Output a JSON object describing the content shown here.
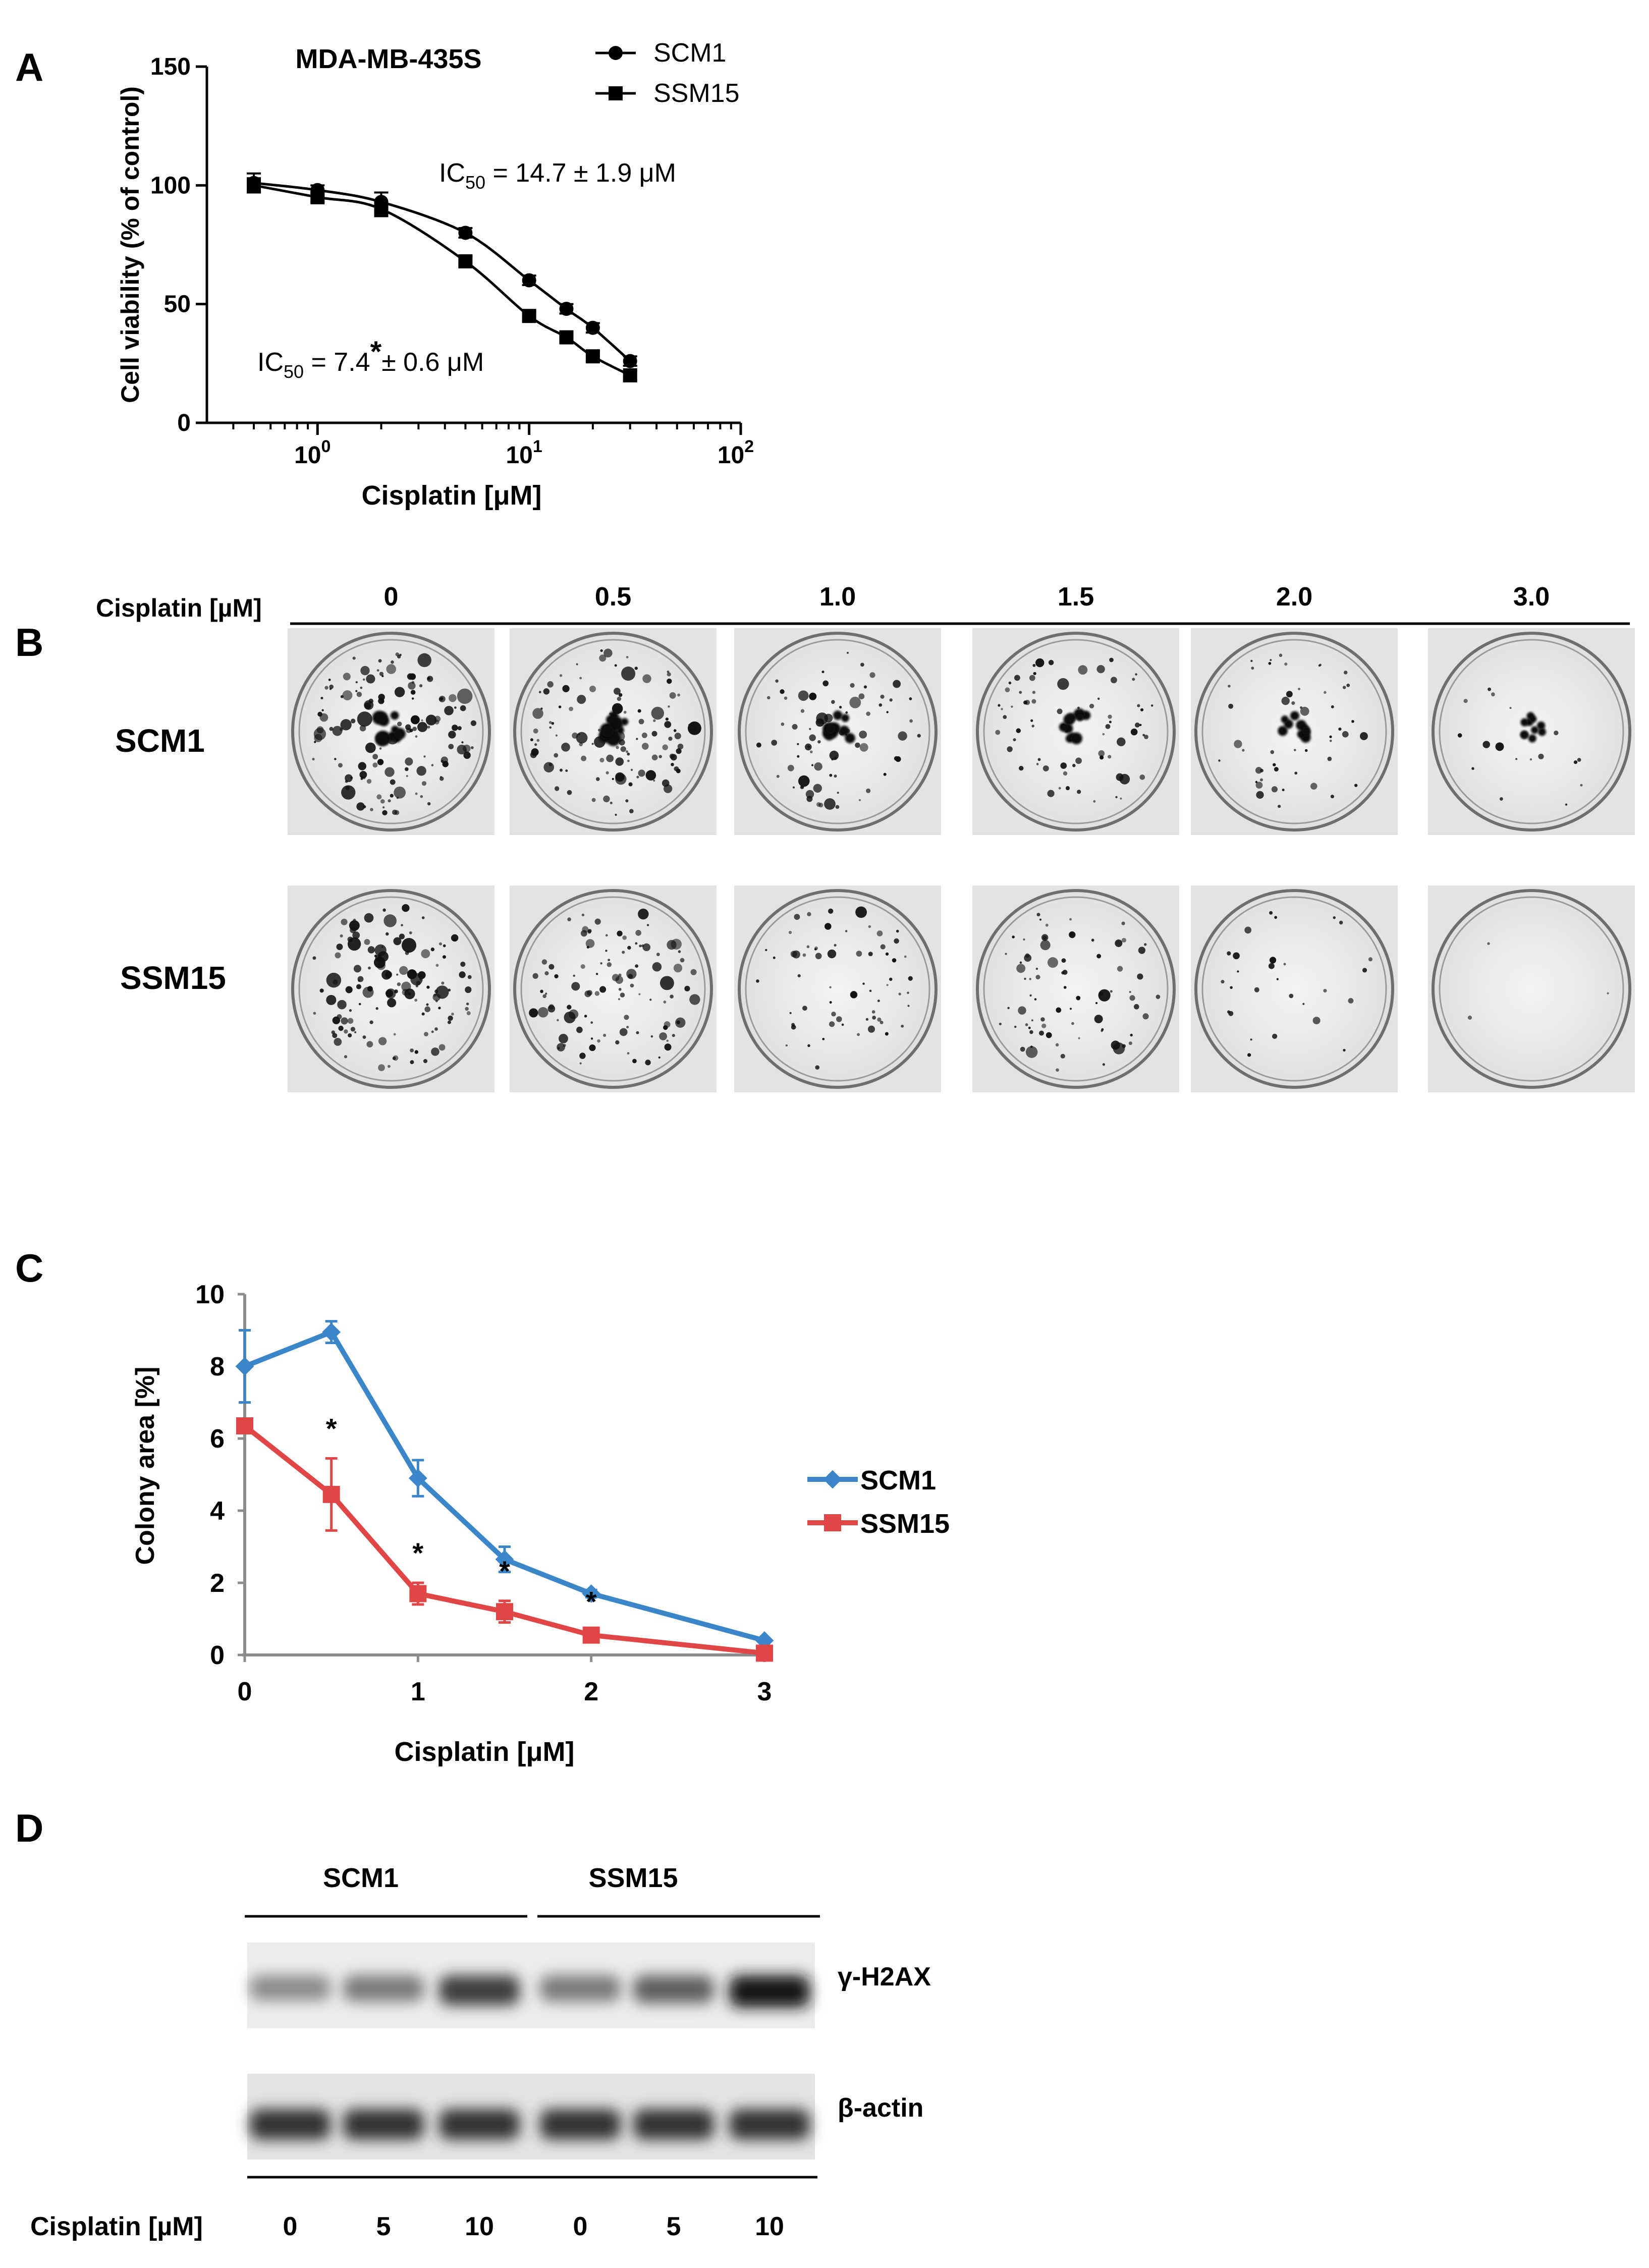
{
  "panels": {
    "a": "A",
    "b": "B",
    "c": "C",
    "d": "D"
  },
  "chart_data": [
    {
      "type": "line",
      "panel": "A",
      "title": "MDA-MB-435S",
      "xlabel": "Cisplatin [μM]",
      "ylabel": "Cell viability (% of control)",
      "xscale": "log",
      "xlim": [
        0.3,
        100
      ],
      "ylim": [
        0,
        150
      ],
      "yticks": [
        0,
        50,
        100,
        150
      ],
      "ytick_labels": [
        "0",
        "50",
        "100",
        "150"
      ],
      "xticks": [
        1,
        10,
        100
      ],
      "xtick_labels": [
        {
          "base": "10",
          "exp": "0"
        },
        {
          "base": "10",
          "exp": "1"
        },
        {
          "base": "10",
          "exp": "2"
        }
      ],
      "legend_position": "top-right",
      "series": [
        {
          "name": "SCM1",
          "marker": "circle",
          "x": [
            0.5,
            1,
            2,
            5,
            10,
            15,
            20,
            30
          ],
          "values": [
            101,
            98,
            93,
            80,
            60,
            48,
            40,
            26
          ],
          "errors": [
            4,
            2,
            4,
            2,
            2,
            2,
            2,
            2
          ]
        },
        {
          "name": "SSM15",
          "marker": "square",
          "x": [
            0.5,
            1,
            2,
            5,
            10,
            15,
            20,
            30
          ],
          "values": [
            100,
            95,
            90,
            68,
            45,
            36,
            28,
            20
          ],
          "errors": [
            3,
            2,
            3,
            2,
            2,
            2,
            2,
            2
          ]
        }
      ],
      "annotations": {
        "scm1": {
          "prefix": "IC",
          "sub": "50",
          "text": " = 14.7 ± 1.9 μM"
        },
        "ssm15": {
          "prefix": "IC",
          "sub": "50",
          "value": " = 7.4",
          "star": "*",
          "rest": "± 0.6 μM"
        }
      }
    },
    {
      "type": "line",
      "panel": "C",
      "title": "",
      "xlabel": "Cisplatin [μM]",
      "ylabel": "Colony area [%]",
      "xlim": [
        0,
        3
      ],
      "ylim": [
        0,
        10
      ],
      "xticks": [
        0,
        1,
        2,
        3
      ],
      "xtick_labels": [
        "0",
        "1",
        "2",
        "3"
      ],
      "yticks": [
        0,
        2,
        4,
        6,
        8,
        10
      ],
      "ytick_labels": [
        "0",
        "2",
        "4",
        "6",
        "8",
        "10"
      ],
      "legend_position": "right",
      "series": [
        {
          "name": "SCM1",
          "color": "#3a86c8",
          "marker": "diamond",
          "x": [
            0,
            0.5,
            1,
            1.5,
            2,
            3
          ],
          "values": [
            8.0,
            8.95,
            4.9,
            2.65,
            1.7,
            0.4
          ],
          "errors": [
            1.0,
            0.3,
            0.5,
            0.35,
            0.1,
            0.05
          ]
        },
        {
          "name": "SSM15",
          "color": "#e04646",
          "marker": "square",
          "x": [
            0,
            0.5,
            1,
            1.5,
            2,
            3
          ],
          "values": [
            6.35,
            4.45,
            1.7,
            1.2,
            0.55,
            0.05
          ],
          "errors": [
            0.15,
            1.0,
            0.3,
            0.3,
            0.1,
            0.05
          ]
        }
      ],
      "significance": [
        {
          "x": 0.5,
          "label": "*"
        },
        {
          "x": 1,
          "label": "*"
        },
        {
          "x": 1.5,
          "label": "*"
        },
        {
          "x": 2,
          "label": "*"
        }
      ]
    }
  ],
  "panel_b": {
    "axis_label": "Cisplatin [µM]",
    "concentrations": [
      "0",
      "0.5",
      "1.0",
      "1.5",
      "2.0",
      "3.0"
    ],
    "rows": [
      {
        "label": "SCM1",
        "density": [
          1.0,
          0.85,
          0.55,
          0.5,
          0.35,
          0.12
        ]
      },
      {
        "label": "SSM15",
        "density": [
          0.95,
          0.75,
          0.45,
          0.55,
          0.2,
          0.02
        ]
      }
    ]
  },
  "panel_d": {
    "groups": [
      "SCM1",
      "SSM15"
    ],
    "bands": [
      {
        "label": "γ-H2AX",
        "intensity": [
          0.35,
          0.45,
          0.8,
          0.45,
          0.6,
          1.0
        ]
      },
      {
        "label": "β-actin",
        "intensity": [
          0.85,
          0.85,
          0.85,
          0.85,
          0.85,
          0.85
        ]
      }
    ],
    "axis_label": "Cisplatin [µM]",
    "lanes": [
      "0",
      "5",
      "10",
      "0",
      "5",
      "10"
    ]
  },
  "colors": {
    "black": "#000000",
    "axis_gray": "#8c8c8c",
    "scm1_blue": "#3a86c8",
    "ssm15_red": "#e04646"
  }
}
